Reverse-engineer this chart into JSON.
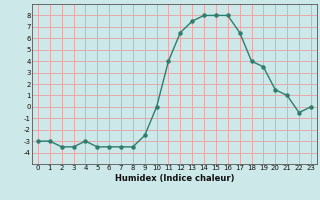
{
  "x": [
    0,
    1,
    2,
    3,
    4,
    5,
    6,
    7,
    8,
    9,
    10,
    11,
    12,
    13,
    14,
    15,
    16,
    17,
    18,
    19,
    20,
    21,
    22,
    23
  ],
  "y": [
    -3,
    -3,
    -3.5,
    -3.5,
    -3,
    -3.5,
    -3.5,
    -3.5,
    -3.5,
    -2.5,
    0,
    4,
    6.5,
    7.5,
    8,
    8,
    8,
    6.5,
    4,
    3.5,
    1.5,
    1,
    -0.5,
    0
  ],
  "line_color": "#2e7d6e",
  "marker_color": "#2e7d6e",
  "bg_color": "#cce8e8",
  "grid_color_major": "#e8a0a0",
  "grid_color_minor": "#cdd8d8",
  "xlabel": "Humidex (Indice chaleur)",
  "xlim": [
    -0.5,
    23.5
  ],
  "ylim": [
    -5,
    9
  ],
  "yticks": [
    -4,
    -3,
    -2,
    -1,
    0,
    1,
    2,
    3,
    4,
    5,
    6,
    7,
    8
  ],
  "xticks": [
    0,
    1,
    2,
    3,
    4,
    5,
    6,
    7,
    8,
    9,
    10,
    11,
    12,
    13,
    14,
    15,
    16,
    17,
    18,
    19,
    20,
    21,
    22,
    23
  ],
  "tick_fontsize": 5.0,
  "xlabel_fontsize": 6.0,
  "linewidth": 1.0,
  "markersize": 2.2
}
